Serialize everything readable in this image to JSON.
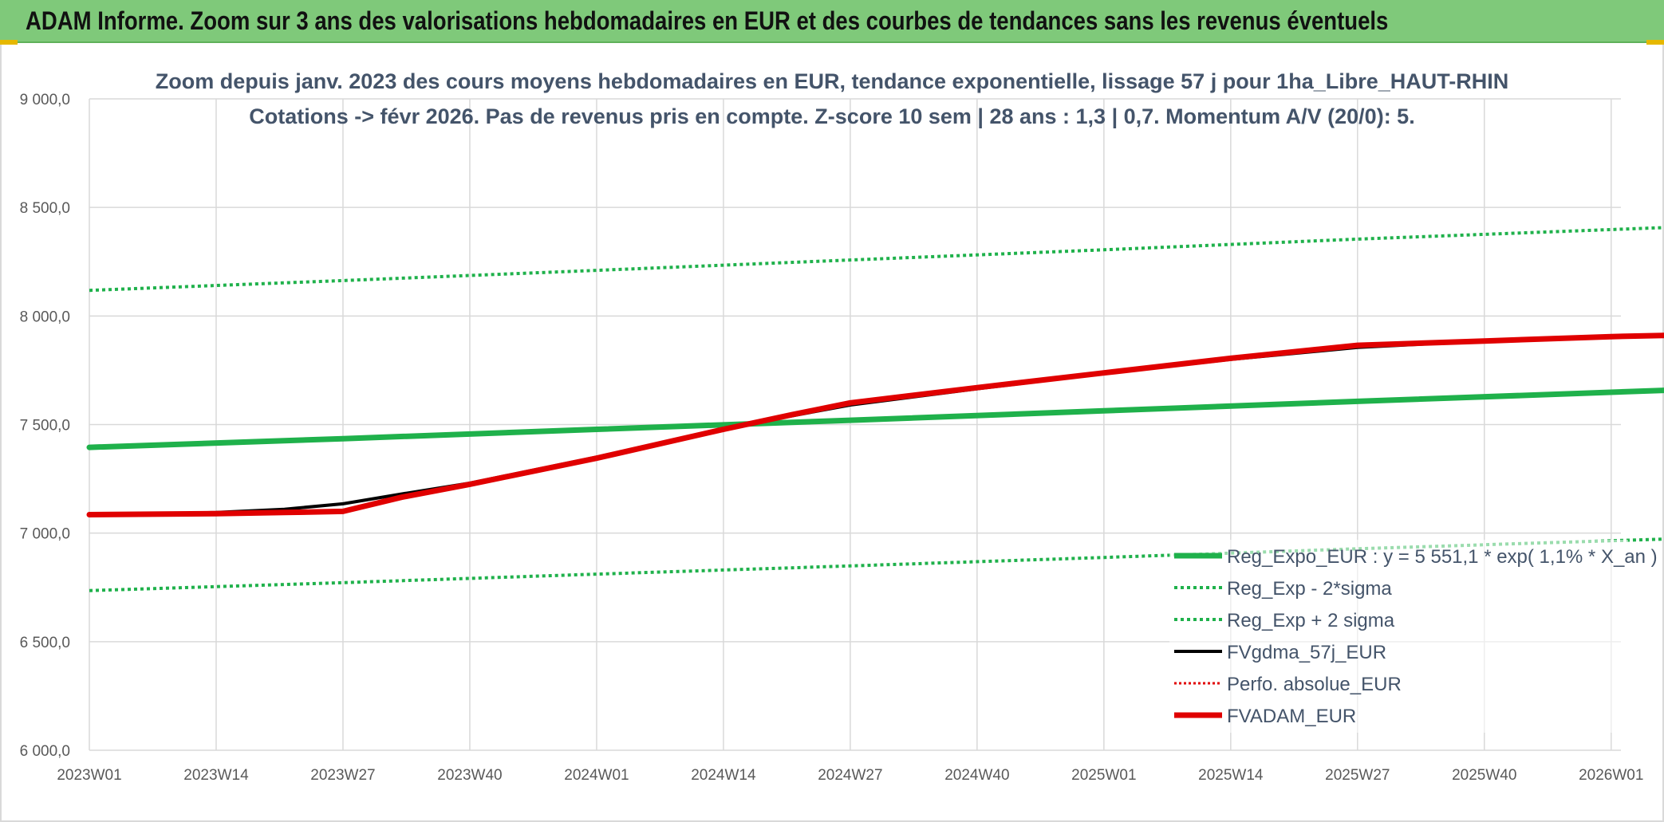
{
  "header": {
    "title": "ADAM Informe. Zoom sur 3 ans des valorisations hebdomadaires en EUR et des courbes de tendances sans les revenus éventuels"
  },
  "chart_data": {
    "type": "line",
    "title_line1": "Zoom depuis janv. 2023 des cours moyens hebdomadaires en EUR, tendance exponentielle, lissage 57 j pour 1ha_Libre_HAUT-RHIN",
    "title_line2": "Cotations -> févr 2026. Pas de revenus pris en compte. Z-score 10 sem | 28 ans : 1,3 | 0,7. Momentum A/V (20/0): 5.",
    "xlabel": "",
    "ylabel": "",
    "ylim": [
      6000,
      9000
    ],
    "xlim": [
      0,
      157
    ],
    "yticks": [
      {
        "value": 6000,
        "label": "6 000,0"
      },
      {
        "value": 6500,
        "label": "6 500,0"
      },
      {
        "value": 7000,
        "label": "7 000,0"
      },
      {
        "value": 7500,
        "label": "7 500,0"
      },
      {
        "value": 8000,
        "label": "8 000,0"
      },
      {
        "value": 8500,
        "label": "8 500,0"
      },
      {
        "value": 9000,
        "label": "9 000,0"
      }
    ],
    "xticks": [
      {
        "value": 0,
        "label": "2023W01"
      },
      {
        "value": 13,
        "label": "2023W14"
      },
      {
        "value": 26,
        "label": "2023W27"
      },
      {
        "value": 39,
        "label": "2023W40"
      },
      {
        "value": 52,
        "label": "2024W01"
      },
      {
        "value": 65,
        "label": "2024W14"
      },
      {
        "value": 78,
        "label": "2024W27"
      },
      {
        "value": 91,
        "label": "2024W40"
      },
      {
        "value": 104,
        "label": "2025W01"
      },
      {
        "value": 117,
        "label": "2025W14"
      },
      {
        "value": 130,
        "label": "2025W27"
      },
      {
        "value": 143,
        "label": "2025W40"
      },
      {
        "value": 156,
        "label": "2026W01"
      }
    ],
    "grid": true,
    "legend_position": "bottom-right",
    "series": [
      {
        "name": "Reg_Expo_EUR : y = 5 551,1 * exp( 1,1% *  X_an )",
        "color": "#1fb14b",
        "style": "solid",
        "width": 7,
        "x": [
          0,
          26,
          52,
          78,
          104,
          130,
          163
        ],
        "values": [
          7395,
          7435,
          7478,
          7520,
          7563,
          7607,
          7660
        ]
      },
      {
        "name": "Reg_Exp - 2*sigma",
        "color": "#1fb14b",
        "style": "dotted",
        "width": 4,
        "x": [
          0,
          26,
          52,
          78,
          104,
          130,
          163
        ],
        "values": [
          6735,
          6772,
          6811,
          6849,
          6888,
          6928,
          6975
        ]
      },
      {
        "name": "Reg_Exp + 2 sigma",
        "color": "#1fb14b",
        "style": "dotted",
        "width": 4,
        "x": [
          0,
          26,
          52,
          78,
          104,
          130,
          163
        ],
        "values": [
          8118,
          8163,
          8210,
          8258,
          8305,
          8354,
          8410
        ]
      },
      {
        "name": "FVgdma_57j_EUR",
        "color": "#000000",
        "style": "solid",
        "width": 4,
        "x": [
          0,
          13,
          20,
          26,
          32,
          39,
          52,
          65,
          72,
          78,
          91,
          104,
          117,
          130,
          143,
          156,
          163
        ],
        "values": [
          7085,
          7095,
          7110,
          7135,
          7180,
          7230,
          7350,
          7480,
          7540,
          7590,
          7665,
          7735,
          7800,
          7855,
          7885,
          7905,
          7912
        ]
      },
      {
        "name": "Perfo. absolue_EUR",
        "color": "#e00000",
        "style": "dotted",
        "width": 3,
        "x": [
          0,
          13,
          20,
          26,
          32,
          39,
          52,
          65,
          72,
          78,
          91,
          104,
          117,
          130,
          143,
          156,
          163
        ],
        "values": [
          7085,
          7090,
          7095,
          7100,
          7165,
          7225,
          7345,
          7478,
          7545,
          7600,
          7670,
          7738,
          7805,
          7865,
          7885,
          7905,
          7912
        ]
      },
      {
        "name": "FVADAM_EUR",
        "color": "#e00000",
        "style": "solid",
        "width": 7,
        "x": [
          0,
          13,
          20,
          26,
          32,
          39,
          52,
          65,
          72,
          78,
          91,
          104,
          117,
          130,
          143,
          156,
          163
        ],
        "values": [
          7085,
          7090,
          7095,
          7100,
          7165,
          7225,
          7345,
          7478,
          7545,
          7600,
          7670,
          7738,
          7805,
          7865,
          7885,
          7905,
          7912
        ]
      }
    ]
  }
}
